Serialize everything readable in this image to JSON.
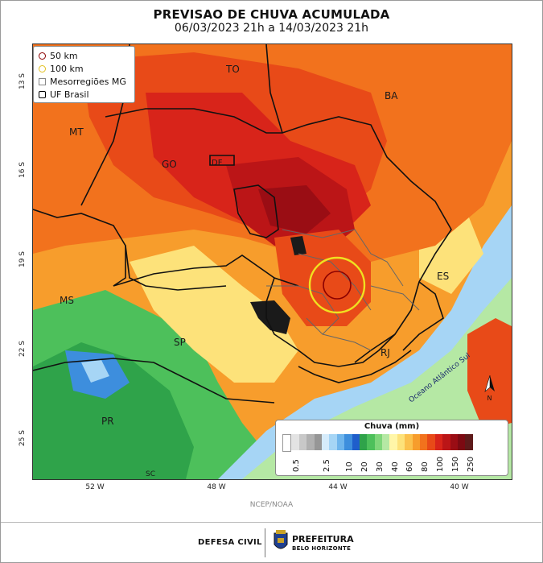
{
  "title": "PREVISAO DE CHUVA ACUMULADA",
  "subtitle": "06/03/2023 21h a 14/03/2023 21h",
  "legend": {
    "items": [
      {
        "label": "50 km",
        "color": "#8b0000",
        "shape": "circle"
      },
      {
        "label": "100 km",
        "color": "#e2c021",
        "shape": "circle"
      },
      {
        "label": "Mesorregiões MG",
        "color": "#888888",
        "shape": "square"
      },
      {
        "label": "UF Brasil",
        "color": "#000000",
        "shape": "square"
      }
    ]
  },
  "lat_ticks": [
    "13 S",
    "16 S",
    "19 S",
    "22 S",
    "25 S"
  ],
  "lon_ticks": [
    "52 W",
    "48 W",
    "44 W",
    "40 W"
  ],
  "state_labels": [
    "TO",
    "BA",
    "MT",
    "GO",
    "DF",
    "MS",
    "ES",
    "SP",
    "RJ",
    "PR",
    "SC"
  ],
  "ocean_label": "Oceano Atlântico Sul",
  "north_label": "N",
  "scale": {
    "title": "Chuva (mm)",
    "ticks": [
      "0.5",
      "2.5",
      "10",
      "20",
      "30",
      "40",
      "60",
      "80",
      "100",
      "150",
      "250"
    ],
    "colors": [
      "#ffffff",
      "#e3e3e3",
      "#c8c8c8",
      "#b0b0b0",
      "#969696",
      "#d6ecfb",
      "#a6d5f5",
      "#6fb5ec",
      "#3d8edd",
      "#1f5ecb",
      "#2fa34a",
      "#4dc05b",
      "#7fd67a",
      "#b5e8a4",
      "#fff6a8",
      "#fde27a",
      "#fbc14d",
      "#f79d2c",
      "#f2721d",
      "#e84a18",
      "#d8241a",
      "#bb1517",
      "#9a0d14",
      "#7c0a12",
      "#5e1a1a"
    ]
  },
  "source": "NCEP/NOAA",
  "footer": {
    "defesa": "DEFESA CIVIL",
    "pref1": "PREFEITURA",
    "pref2": "BELO HORIZONTE"
  },
  "colors": {
    "green": "#2fa34a",
    "yellow": "#fde27a",
    "orange": "#f2721d",
    "red": "#d8241a",
    "darkred": "#9a0d14",
    "blue": "#3d8edd"
  }
}
